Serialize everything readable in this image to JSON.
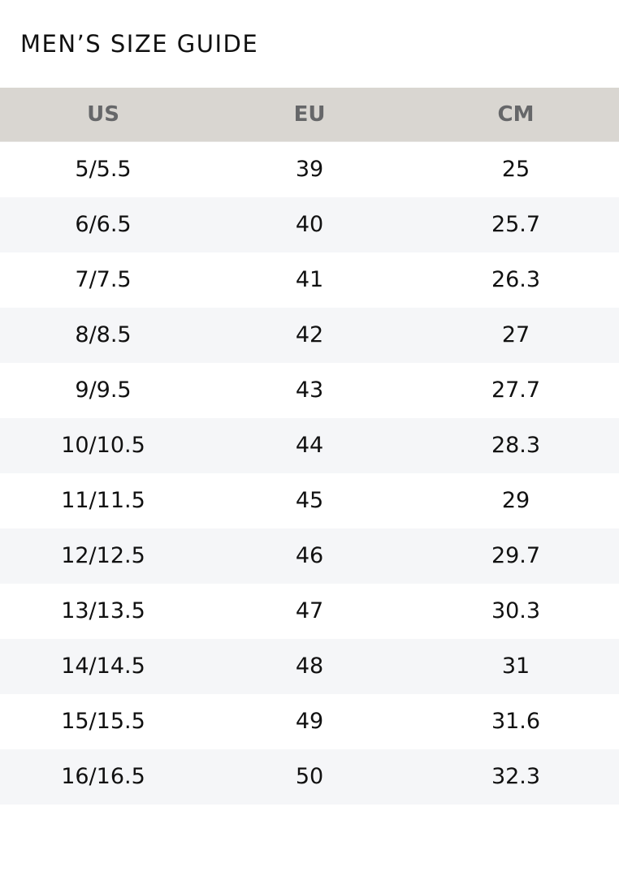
{
  "title": "MEN’S SIZE GUIDE",
  "columns": [
    "US",
    "EU",
    "CM"
  ],
  "rows": [
    [
      "5/5.5",
      "39",
      "25"
    ],
    [
      "6/6.5",
      "40",
      "25.7"
    ],
    [
      "7/7.5",
      "41",
      "26.3"
    ],
    [
      "8/8.5",
      "42",
      "27"
    ],
    [
      "9/9.5",
      "43",
      "27.7"
    ],
    [
      "10/10.5",
      "44",
      "28.3"
    ],
    [
      "11/11.5",
      "45",
      "29"
    ],
    [
      "12/12.5",
      "46",
      "29.7"
    ],
    [
      "13/13.5",
      "47",
      "30.3"
    ],
    [
      "14/14.5",
      "48",
      "31"
    ],
    [
      "15/15.5",
      "49",
      "31.6"
    ],
    [
      "16/16.5",
      "50",
      "32.3"
    ]
  ]
}
